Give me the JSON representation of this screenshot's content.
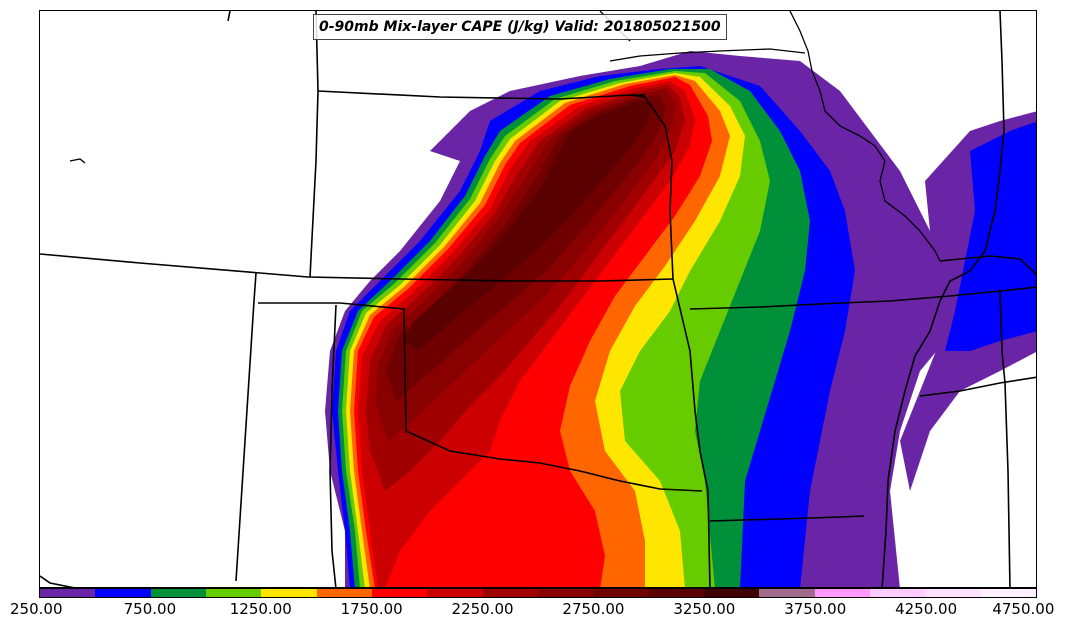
{
  "title": "0-90mb Mix-layer CAPE (J/kg) Valid: 201805021500",
  "colorbar": {
    "levels": [
      250,
      500,
      750,
      1000,
      1250,
      1500,
      1750,
      2000,
      2250,
      2500,
      2750,
      3000,
      3250,
      3500,
      3750,
      4000,
      4250,
      4500,
      4750
    ],
    "colors": [
      "#6a24a6",
      "#0000ff",
      "#00903a",
      "#66cc00",
      "#ffe600",
      "#ff6600",
      "#ff0000",
      "#cc0000",
      "#a00000",
      "#880000",
      "#700000",
      "#5a0000",
      "#400000",
      "#a06b8c",
      "#ff99ff",
      "#ffccff",
      "#ffe0ff",
      "#fff0ff"
    ],
    "tick_labels": [
      "250.00",
      "750.00",
      "1250.00",
      "1750.00",
      "2250.00",
      "2750.00",
      "3250.00",
      "3750.00",
      "4250.00",
      "4750.00"
    ]
  },
  "icons": [
    "state-border-lines",
    "coastline-lines"
  ]
}
